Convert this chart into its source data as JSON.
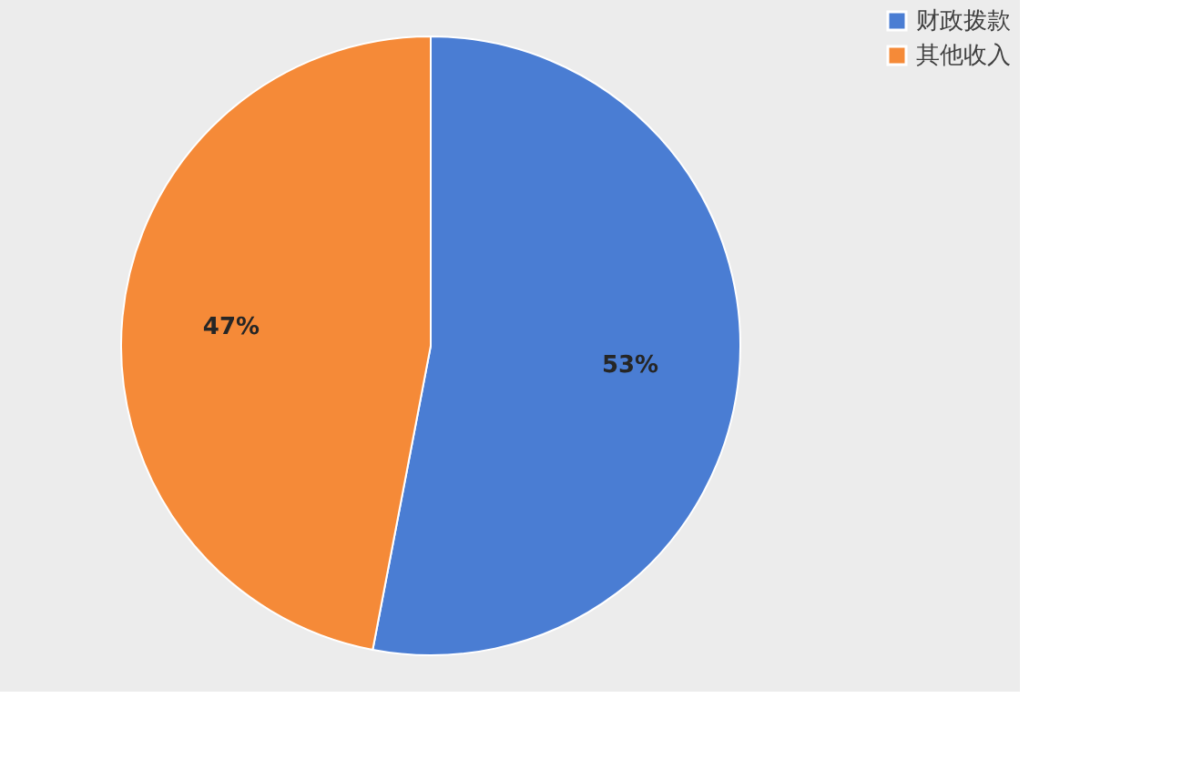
{
  "chart_data": {
    "type": "pie",
    "categories": [
      "财政拨款",
      "其他收入"
    ],
    "values": [
      53,
      47
    ],
    "colors": [
      "#4a7dd3",
      "#f58a38"
    ],
    "value_labels": [
      "53%",
      "47%"
    ],
    "legend": "right"
  }
}
